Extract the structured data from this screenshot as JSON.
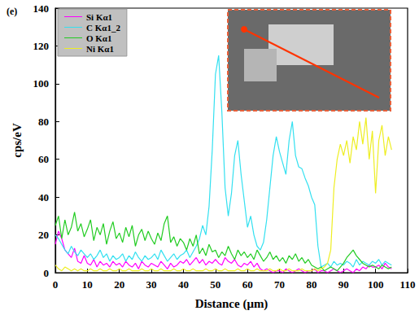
{
  "chart_data": {
    "type": "line",
    "title": "(e)",
    "x_label": "Distance (μm)",
    "y_label": "cps/eV",
    "x": [
      0,
      1,
      2,
      3,
      4,
      5,
      6,
      7,
      8,
      9,
      10,
      11,
      12,
      13,
      14,
      15,
      16,
      17,
      18,
      19,
      20,
      21,
      22,
      23,
      24,
      25,
      26,
      27,
      28,
      29,
      30,
      31,
      32,
      33,
      34,
      35,
      36,
      37,
      38,
      39,
      40,
      41,
      42,
      43,
      44,
      45,
      46,
      47,
      48,
      49,
      50,
      51,
      52,
      53,
      54,
      55,
      56,
      57,
      58,
      59,
      60,
      61,
      62,
      63,
      64,
      65,
      66,
      67,
      68,
      69,
      70,
      71,
      72,
      73,
      74,
      75,
      76,
      77,
      78,
      79,
      80,
      81,
      82,
      83,
      84,
      85,
      86,
      87,
      88,
      89,
      90,
      91,
      92,
      93,
      94,
      95,
      96,
      97,
      98,
      99,
      100,
      101,
      102,
      103,
      104,
      105
    ],
    "series": [
      {
        "name": "Si Kα1",
        "color": "#ff00ff",
        "values": [
          15,
          22,
          18,
          12,
          10,
          8,
          13,
          6,
          5,
          9,
          5,
          4,
          7,
          3,
          6,
          4,
          5,
          3,
          6,
          4,
          5,
          3,
          6,
          4,
          3,
          5,
          2,
          6,
          4,
          3,
          5,
          4,
          3,
          6,
          4,
          2,
          5,
          3,
          4,
          6,
          5,
          7,
          4,
          6,
          8,
          5,
          7,
          4,
          6,
          5,
          7,
          5,
          4,
          8,
          6,
          5,
          7,
          4,
          3,
          5,
          4,
          6,
          3,
          5,
          2,
          1,
          2,
          1,
          0,
          1,
          1,
          0,
          2,
          1,
          0,
          1,
          2,
          1,
          0,
          1,
          1,
          2,
          0,
          1,
          1,
          0,
          1,
          2,
          1,
          0,
          1,
          2,
          1,
          0,
          2,
          1,
          3,
          2,
          4,
          3,
          3,
          4,
          2,
          5,
          3,
          2
        ]
      },
      {
        "name": "C Kα1_2",
        "color": "#33e0f0",
        "values": [
          20,
          18,
          15,
          12,
          10,
          14,
          11,
          9,
          12,
          10,
          8,
          10,
          7,
          9,
          12,
          8,
          10,
          6,
          9,
          7,
          8,
          10,
          6,
          9,
          7,
          11,
          8,
          6,
          9,
          7,
          8,
          10,
          7,
          12,
          9,
          6,
          8,
          10,
          7,
          9,
          10,
          12,
          8,
          11,
          14,
          18,
          25,
          20,
          35,
          65,
          105,
          115,
          85,
          45,
          30,
          42,
          62,
          70,
          52,
          38,
          24,
          30,
          20,
          14,
          12,
          16,
          28,
          45,
          62,
          72,
          64,
          58,
          52,
          70,
          80,
          62,
          56,
          55,
          50,
          46,
          40,
          36,
          14,
          3,
          4,
          5,
          3,
          6,
          4,
          5,
          4,
          6,
          5,
          3,
          7,
          4,
          6,
          5,
          4,
          6,
          5,
          7,
          4,
          6,
          5,
          4
        ]
      },
      {
        "name": "O Kα1",
        "color": "#22cc22",
        "values": [
          25,
          30,
          18,
          28,
          20,
          24,
          32,
          22,
          26,
          19,
          23,
          28,
          17,
          24,
          20,
          26,
          15,
          22,
          27,
          18,
          21,
          16,
          24,
          19,
          25,
          14,
          20,
          23,
          17,
          22,
          18,
          15,
          21,
          17,
          26,
          30,
          16,
          19,
          14,
          18,
          16,
          12,
          18,
          14,
          20,
          10,
          13,
          9,
          15,
          11,
          12,
          8,
          11,
          9,
          14,
          10,
          7,
          12,
          9,
          11,
          8,
          10,
          7,
          12,
          9,
          6,
          8,
          11,
          7,
          9,
          6,
          8,
          5,
          9,
          7,
          10,
          6,
          8,
          5,
          7,
          4,
          3,
          2,
          3,
          1,
          2,
          3,
          2,
          1,
          3,
          5,
          8,
          10,
          12,
          9,
          7,
          5,
          4,
          3,
          4,
          3,
          2,
          4,
          3,
          2,
          3
        ]
      },
      {
        "name": "Ni Kα1",
        "color": "#eeee22",
        "values": [
          4,
          2,
          1,
          3,
          2,
          1,
          2,
          1,
          2,
          1,
          1,
          2,
          1,
          1,
          2,
          1,
          1,
          2,
          1,
          1,
          2,
          1,
          1,
          2,
          1,
          1,
          1,
          2,
          1,
          1,
          2,
          1,
          1,
          2,
          1,
          1,
          1,
          2,
          1,
          1,
          2,
          1,
          1,
          2,
          1,
          1,
          1,
          2,
          1,
          1,
          2,
          1,
          1,
          2,
          1,
          1,
          1,
          2,
          1,
          1,
          2,
          1,
          1,
          2,
          1,
          1,
          1,
          2,
          1,
          1,
          2,
          1,
          1,
          2,
          1,
          1,
          1,
          2,
          1,
          1,
          1,
          2,
          1,
          2,
          3,
          5,
          12,
          45,
          60,
          68,
          62,
          70,
          58,
          72,
          65,
          80,
          68,
          82,
          60,
          75,
          42,
          70,
          78,
          62,
          72,
          65
        ]
      }
    ],
    "xlim": [
      0,
      110
    ],
    "xticks": [
      0,
      10,
      20,
      30,
      40,
      50,
      60,
      70,
      80,
      90,
      100,
      110
    ],
    "ylim": [
      0,
      140
    ],
    "yticks": [
      0,
      20,
      40,
      60,
      80,
      100,
      120,
      140
    ],
    "legend": "top-left",
    "grid": false
  }
}
